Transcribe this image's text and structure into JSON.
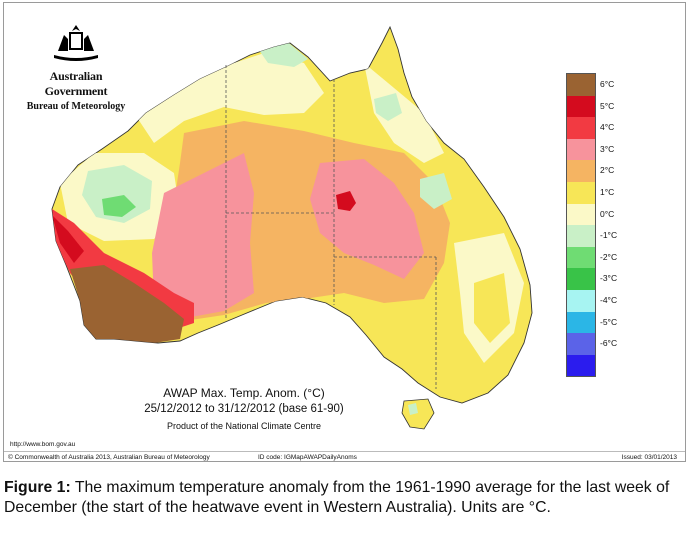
{
  "logo": {
    "government": "Australian Government",
    "bureau": "Bureau of Meteorology",
    "crest_icon": "coat-of-arms-icon"
  },
  "map": {
    "title": "AWAP Max. Temp. Anom. (°C)",
    "period": "25/12/2012 to 31/12/2012 (base 61-90)",
    "product": "Product of the National Climate Centre"
  },
  "legend": {
    "items": [
      {
        "label": "6°C",
        "color": "#9a6332"
      },
      {
        "label": "5°C",
        "color": "#d40b1e"
      },
      {
        "label": "4°C",
        "color": "#f23a42"
      },
      {
        "label": "3°C",
        "color": "#f7939c"
      },
      {
        "label": "2°C",
        "color": "#f5b462"
      },
      {
        "label": "1°C",
        "color": "#f7e657"
      },
      {
        "label": "0°C",
        "color": "#fbf9c8"
      },
      {
        "label": "-1°C",
        "color": "#c9f0c7"
      },
      {
        "label": "-2°C",
        "color": "#6fdc73"
      },
      {
        "label": "-3°C",
        "color": "#39c348"
      },
      {
        "label": "-4°C",
        "color": "#a7f4f2"
      },
      {
        "label": "-5°C",
        "color": "#2bb6e6"
      },
      {
        "label": "-6°C",
        "color": "#5b63e8"
      },
      {
        "label": "",
        "color": "#2b1cee"
      }
    ]
  },
  "footer": {
    "url": "http://www.bom.gov.au",
    "copyright": "© Commonwealth of Australia 2013, Australian Bureau of Meteorology",
    "id_code": "ID code: IGMapAWAPDailyAnoms",
    "issued": "Issued: 03/01/2013"
  },
  "caption": {
    "label": "Figure 1:",
    "text": " The maximum temperature anomaly from the 1961-1990 average for the last week of December (the start of the heatwave event in Western Australia). Units are °C."
  }
}
